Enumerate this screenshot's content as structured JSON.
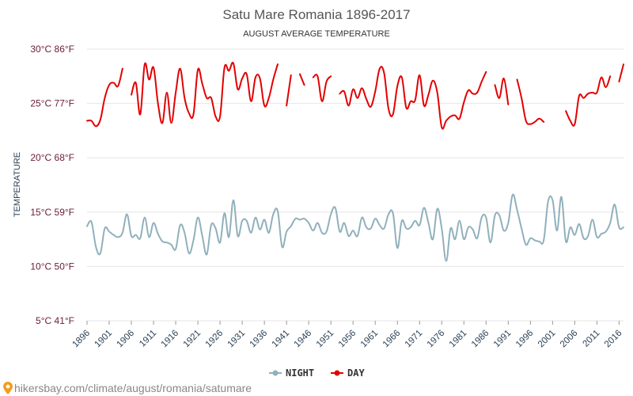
{
  "chart_data": {
    "type": "line",
    "title": "Satu Mare Romania 1896-2017",
    "subtitle": "AUGUST AVERAGE TEMPERATURE",
    "ylabel": "TEMPERATURE",
    "xlabel": "",
    "ylim": [
      5,
      30
    ],
    "xlim": [
      1896,
      2017
    ],
    "y_ticks": [
      {
        "value": 30,
        "label": "30°C 86°F"
      },
      {
        "value": 25,
        "label": "25°C 77°F"
      },
      {
        "value": 20,
        "label": "20°C 68°F"
      },
      {
        "value": 15,
        "label": "15°C 59°F"
      },
      {
        "value": 10,
        "label": "10°C 50°F"
      },
      {
        "value": 5,
        "label": "5°C 41°F"
      }
    ],
    "x_ticks": [
      {
        "value": 1896,
        "label": "1896"
      },
      {
        "value": 1901,
        "label": "1901"
      },
      {
        "value": 1906,
        "label": "1906"
      },
      {
        "value": 1911,
        "label": "1911"
      },
      {
        "value": 1916,
        "label": "1916"
      },
      {
        "value": 1921,
        "label": "1921"
      },
      {
        "value": 1926,
        "label": "1926"
      },
      {
        "value": 1931,
        "label": "1931"
      },
      {
        "value": 1936,
        "label": "1936"
      },
      {
        "value": 1941,
        "label": "1941"
      },
      {
        "value": 1946,
        "label": "1946"
      },
      {
        "value": 1951,
        "label": "1951"
      },
      {
        "value": 1956,
        "label": "1956"
      },
      {
        "value": 1961,
        "label": "1961"
      },
      {
        "value": 1966,
        "label": "1966"
      },
      {
        "value": 1971,
        "label": "1971"
      },
      {
        "value": 1976,
        "label": "1976"
      },
      {
        "value": 1981,
        "label": "1981"
      },
      {
        "value": 1986,
        "label": "1986"
      },
      {
        "value": 1991,
        "label": "1991"
      },
      {
        "value": 1996,
        "label": "1996"
      },
      {
        "value": 2001,
        "label": "2001"
      },
      {
        "value": 2006,
        "label": "2006"
      },
      {
        "value": 2011,
        "label": "2011"
      },
      {
        "value": 2016,
        "label": "2016"
      }
    ],
    "series": [
      {
        "name": "NIGHT",
        "color": "#90b0bb",
        "points": [
          [
            1896,
            13.7
          ],
          [
            1897,
            14.1
          ],
          [
            1898,
            11.8
          ],
          [
            1899,
            11.2
          ],
          [
            1900,
            13.5
          ],
          [
            1901,
            13.2
          ],
          [
            1902,
            12.9
          ],
          [
            1903,
            12.7
          ],
          [
            1904,
            13.1
          ],
          [
            1905,
            14.8
          ],
          [
            1906,
            12.8
          ],
          [
            1907,
            12.9
          ],
          [
            1908,
            12.6
          ],
          [
            1909,
            14.5
          ],
          [
            1910,
            12.7
          ],
          [
            1911,
            14.0
          ],
          [
            1912,
            13.0
          ],
          [
            1913,
            12.3
          ],
          [
            1914,
            12.2
          ],
          [
            1915,
            12.0
          ],
          [
            1916,
            11.6
          ],
          [
            1917,
            13.8
          ],
          [
            1918,
            13.1
          ],
          [
            1919,
            11.2
          ],
          [
            1920,
            12.4
          ],
          [
            1921,
            14.5
          ],
          [
            1922,
            12.8
          ],
          [
            1923,
            11.1
          ],
          [
            1924,
            13.8
          ],
          [
            1925,
            13.5
          ],
          [
            1926,
            12.2
          ],
          [
            1927,
            14.9
          ],
          [
            1928,
            12.7
          ],
          [
            1929,
            16.1
          ],
          [
            1930,
            12.8
          ],
          [
            1931,
            14.2
          ],
          [
            1932,
            14.2
          ],
          [
            1933,
            13.1
          ],
          [
            1934,
            14.5
          ],
          [
            1935,
            13.4
          ],
          [
            1936,
            14.3
          ],
          [
            1937,
            13.1
          ],
          [
            1938,
            14.8
          ],
          [
            1939,
            15.1
          ],
          [
            1940,
            11.8
          ],
          [
            1941,
            13.2
          ],
          [
            1942,
            13.7
          ],
          [
            1943,
            14.4
          ],
          [
            1944,
            14.3
          ],
          [
            1945,
            14.4
          ],
          [
            1946,
            14.0
          ],
          [
            1947,
            13.3
          ],
          [
            1948,
            14.0
          ],
          [
            1949,
            13.1
          ],
          [
            1950,
            13.2
          ],
          [
            1951,
            14.8
          ],
          [
            1952,
            15.4
          ],
          [
            1953,
            13.2
          ],
          [
            1954,
            14.0
          ],
          [
            1955,
            12.8
          ],
          [
            1956,
            13.3
          ],
          [
            1957,
            12.8
          ],
          [
            1958,
            14.5
          ],
          [
            1959,
            13.6
          ],
          [
            1960,
            13.5
          ],
          [
            1961,
            14.4
          ],
          [
            1962,
            13.8
          ],
          [
            1963,
            13.5
          ],
          [
            1964,
            14.8
          ],
          [
            1965,
            14.9
          ],
          [
            1966,
            11.7
          ],
          [
            1967,
            14.2
          ],
          [
            1968,
            13.5
          ],
          [
            1969,
            13.6
          ],
          [
            1970,
            14.2
          ],
          [
            1971,
            13.8
          ],
          [
            1972,
            15.4
          ],
          [
            1973,
            14.0
          ],
          [
            1974,
            12.5
          ],
          [
            1975,
            15.3
          ],
          [
            1976,
            13.5
          ],
          [
            1977,
            10.5
          ],
          [
            1978,
            13.5
          ],
          [
            1979,
            12.5
          ],
          [
            1980,
            14.2
          ],
          [
            1981,
            12.5
          ],
          [
            1982,
            13.6
          ],
          [
            1983,
            13.4
          ],
          [
            1984,
            12.6
          ],
          [
            1985,
            14.5
          ],
          [
            1986,
            14.5
          ],
          [
            1987,
            12.2
          ],
          [
            1988,
            14.7
          ],
          [
            1989,
            14.7
          ],
          [
            1990,
            13.3
          ],
          [
            1991,
            14.0
          ],
          [
            1992,
            16.6
          ],
          [
            1993,
            15.2
          ],
          [
            1994,
            13.5
          ],
          [
            1995,
            12.0
          ],
          [
            1996,
            12.6
          ],
          [
            1997,
            12.4
          ],
          [
            1998,
            12.3
          ],
          [
            1999,
            12.4
          ],
          [
            2000,
            16.0
          ],
          [
            2001,
            16.1
          ],
          [
            2002,
            13.3
          ],
          [
            2003,
            16.4
          ],
          [
            2004,
            12.3
          ],
          [
            2005,
            13.6
          ],
          [
            2006,
            12.9
          ],
          [
            2007,
            13.9
          ],
          [
            2008,
            12.6
          ],
          [
            2009,
            12.8
          ],
          [
            2010,
            14.3
          ],
          [
            2011,
            12.7
          ],
          [
            2012,
            13.0
          ],
          [
            2013,
            13.2
          ],
          [
            2014,
            14.0
          ],
          [
            2015,
            15.7
          ],
          [
            2016,
            13.6
          ],
          [
            2017,
            13.6
          ]
        ]
      },
      {
        "name": "DAY",
        "color": "#e30000",
        "points": [
          [
            1896,
            23.4
          ],
          [
            1897,
            23.4
          ],
          [
            1898,
            22.9
          ],
          [
            1899,
            23.5
          ],
          [
            1900,
            25.5
          ],
          [
            1901,
            26.7
          ],
          [
            1902,
            26.9
          ],
          [
            1903,
            26.6
          ],
          [
            1904,
            28.2
          ],
          [
            1905,
            null
          ],
          [
            1906,
            25.8
          ],
          [
            1907,
            26.9
          ],
          [
            1908,
            24.0
          ],
          [
            1909,
            28.6
          ],
          [
            1910,
            27.2
          ],
          [
            1911,
            28.3
          ],
          [
            1912,
            25.0
          ],
          [
            1913,
            23.2
          ],
          [
            1914,
            26.0
          ],
          [
            1915,
            23.2
          ],
          [
            1916,
            26.0
          ],
          [
            1917,
            28.2
          ],
          [
            1918,
            25.5
          ],
          [
            1919,
            24.1
          ],
          [
            1920,
            24.0
          ],
          [
            1921,
            28.1
          ],
          [
            1922,
            26.8
          ],
          [
            1923,
            25.5
          ],
          [
            1924,
            25.5
          ],
          [
            1925,
            23.8
          ],
          [
            1926,
            23.8
          ],
          [
            1927,
            28.3
          ],
          [
            1928,
            28.0
          ],
          [
            1929,
            28.7
          ],
          [
            1930,
            26.3
          ],
          [
            1931,
            27.3
          ],
          [
            1932,
            27.7
          ],
          [
            1933,
            25.2
          ],
          [
            1934,
            27.4
          ],
          [
            1935,
            27.3
          ],
          [
            1936,
            24.8
          ],
          [
            1937,
            25.5
          ],
          [
            1938,
            27.2
          ],
          [
            1939,
            28.6
          ],
          [
            1940,
            null
          ],
          [
            1941,
            24.8
          ],
          [
            1942,
            27.6
          ],
          [
            1943,
            null
          ],
          [
            1944,
            27.7
          ],
          [
            1945,
            26.7
          ],
          [
            1946,
            null
          ],
          [
            1947,
            27.4
          ],
          [
            1948,
            27.5
          ],
          [
            1949,
            25.2
          ],
          [
            1950,
            27.0
          ],
          [
            1951,
            27.5
          ],
          [
            1952,
            null
          ],
          [
            1953,
            25.9
          ],
          [
            1954,
            26.1
          ],
          [
            1955,
            24.8
          ],
          [
            1956,
            26.3
          ],
          [
            1957,
            25.5
          ],
          [
            1958,
            26.4
          ],
          [
            1959,
            25.4
          ],
          [
            1960,
            24.7
          ],
          [
            1961,
            26.1
          ],
          [
            1962,
            28.2
          ],
          [
            1963,
            27.8
          ],
          [
            1964,
            24.5
          ],
          [
            1965,
            24.0
          ],
          [
            1966,
            26.6
          ],
          [
            1967,
            27.4
          ],
          [
            1968,
            24.6
          ],
          [
            1969,
            25.2
          ],
          [
            1970,
            25.3
          ],
          [
            1971,
            27.6
          ],
          [
            1972,
            24.8
          ],
          [
            1973,
            25.8
          ],
          [
            1974,
            27.1
          ],
          [
            1975,
            26.0
          ],
          [
            1976,
            22.8
          ],
          [
            1977,
            23.4
          ],
          [
            1978,
            23.8
          ],
          [
            1979,
            23.9
          ],
          [
            1980,
            23.6
          ],
          [
            1981,
            25.1
          ],
          [
            1982,
            26.2
          ],
          [
            1983,
            25.9
          ],
          [
            1984,
            26.0
          ],
          [
            1985,
            27.0
          ],
          [
            1986,
            27.9
          ],
          [
            1987,
            null
          ],
          [
            1988,
            26.7
          ],
          [
            1989,
            25.5
          ],
          [
            1990,
            27.3
          ],
          [
            1991,
            24.9
          ],
          [
            1992,
            null
          ],
          [
            1993,
            27.2
          ],
          [
            1994,
            25.5
          ],
          [
            1995,
            23.4
          ],
          [
            1996,
            23.1
          ],
          [
            1997,
            23.3
          ],
          [
            1998,
            23.6
          ],
          [
            1999,
            23.3
          ],
          [
            2000,
            null
          ],
          [
            2001,
            null
          ],
          [
            2002,
            null
          ],
          [
            2003,
            null
          ],
          [
            2004,
            24.3
          ],
          [
            2005,
            23.4
          ],
          [
            2006,
            23.1
          ],
          [
            2007,
            25.7
          ],
          [
            2008,
            25.5
          ],
          [
            2009,
            25.9
          ],
          [
            2010,
            26.0
          ],
          [
            2011,
            26.0
          ],
          [
            2012,
            27.4
          ],
          [
            2013,
            26.5
          ],
          [
            2014,
            27.5
          ],
          [
            2015,
            null
          ],
          [
            2016,
            27.0
          ],
          [
            2017,
            28.6
          ]
        ]
      }
    ],
    "legend": [
      {
        "name": "NIGHT",
        "color": "#90b0bb"
      },
      {
        "name": "DAY",
        "color": "#e30000"
      }
    ],
    "grid": true,
    "legend_position": "bottom-center"
  },
  "footer": {
    "source": "hikersbay.com/climate/august/romania/satumare",
    "pin_color": "#f29c1f"
  }
}
